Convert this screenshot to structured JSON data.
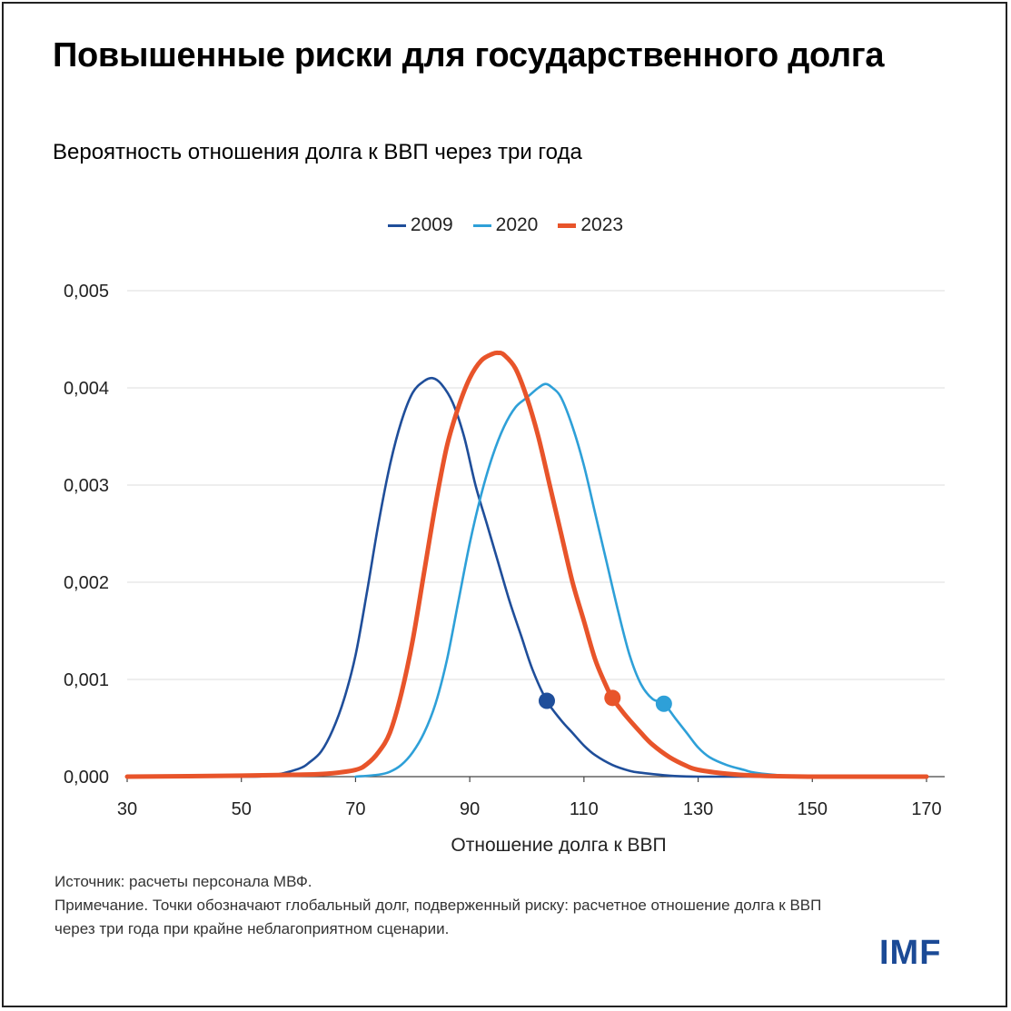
{
  "title": "Повышенные риски для государственного долга",
  "subtitle": "Вероятность отношения долга к ВВП через три года",
  "legend": [
    {
      "label": "2009",
      "color": "#1f4e9a"
    },
    {
      "label": "2020",
      "color": "#2ea0d8"
    },
    {
      "label": "2023",
      "color": "#e8542a"
    }
  ],
  "chart_data": {
    "type": "line",
    "xlabel": "Отношение долга к ВВП",
    "ylabel": "",
    "xlim": [
      30,
      170
    ],
    "ylim": [
      0,
      0.005
    ],
    "x_ticks": [
      30,
      50,
      70,
      90,
      110,
      130,
      150,
      170
    ],
    "x_tick_labels": [
      "30",
      "50",
      "70",
      "90",
      "110",
      "130",
      "150",
      "170"
    ],
    "y_ticks": [
      0,
      0.001,
      0.002,
      0.003,
      0.004,
      0.005
    ],
    "y_tick_labels": [
      "0,000",
      "0,001",
      "0,002",
      "0,003",
      "0,004",
      "0,005"
    ],
    "grid": true,
    "series": [
      {
        "name": "2009",
        "color": "#1f4e9a",
        "emphasis": false,
        "x": [
          30,
          50,
          55,
          60,
          62,
          64,
          66,
          68,
          70,
          72,
          74,
          76,
          78,
          80,
          82,
          83.5,
          85,
          87,
          89,
          91,
          93,
          95,
          97,
          99,
          101,
          103.5,
          106,
          108,
          110,
          112,
          115,
          118,
          120,
          125,
          130,
          140,
          150,
          170
        ],
        "y": [
          0,
          0,
          1e-05,
          8e-05,
          0.00015,
          0.00026,
          0.00048,
          0.0008,
          0.00125,
          0.0019,
          0.0026,
          0.0032,
          0.00365,
          0.00395,
          0.00407,
          0.0041,
          0.00404,
          0.00385,
          0.0035,
          0.003,
          0.0026,
          0.0022,
          0.0018,
          0.00145,
          0.0011,
          0.00078,
          0.00058,
          0.00045,
          0.00032,
          0.00022,
          0.00012,
          6e-05,
          4e-05,
          1e-05,
          0,
          0,
          0,
          0
        ]
      },
      {
        "name": "2020",
        "color": "#2ea0d8",
        "emphasis": false,
        "x": [
          70,
          74,
          76,
          78,
          80,
          82,
          84,
          86,
          88,
          90,
          92,
          94,
          96,
          98,
          100,
          102,
          103.3,
          104.5,
          106,
          108,
          110,
          112,
          114,
          116,
          118,
          120,
          122,
          124,
          126,
          128,
          130,
          132,
          135,
          138,
          140,
          145,
          150,
          160,
          170
        ],
        "y": [
          0,
          2e-05,
          5e-05,
          0.00012,
          0.00025,
          0.00045,
          0.00075,
          0.0012,
          0.0018,
          0.0024,
          0.0029,
          0.0033,
          0.0036,
          0.0038,
          0.0039,
          0.004,
          0.00404,
          0.004,
          0.0039,
          0.0036,
          0.0032,
          0.0027,
          0.0022,
          0.0017,
          0.00125,
          0.00095,
          0.0008,
          0.00075,
          0.0006,
          0.00045,
          0.0003,
          0.0002,
          0.00012,
          7e-05,
          4e-05,
          1e-05,
          0,
          0,
          0
        ]
      },
      {
        "name": "2023",
        "color": "#e8542a",
        "emphasis": true,
        "x": [
          30,
          50,
          60,
          65,
          70,
          72,
          74,
          76,
          78,
          80,
          82,
          84,
          86,
          88,
          90,
          92,
          94,
          95,
          96,
          98,
          100,
          102,
          104,
          106,
          108,
          110,
          112,
          114,
          115,
          117,
          120,
          122,
          125,
          128,
          130,
          135,
          140,
          150,
          160,
          170
        ],
        "y": [
          0,
          1e-05,
          2e-05,
          3e-05,
          7e-05,
          0.00013,
          0.00025,
          0.00045,
          0.00085,
          0.0014,
          0.0021,
          0.0028,
          0.0034,
          0.0038,
          0.0041,
          0.00428,
          0.00435,
          0.00436,
          0.00434,
          0.0042,
          0.0039,
          0.0035,
          0.003,
          0.0025,
          0.002,
          0.0016,
          0.0012,
          0.00092,
          0.00081,
          0.00065,
          0.00045,
          0.00033,
          0.0002,
          0.00011,
          7e-05,
          3e-05,
          1e-05,
          0,
          0,
          0
        ]
      }
    ],
    "markers": [
      {
        "series": "2009",
        "x": 103.5,
        "y": 0.00078
      },
      {
        "series": "2023",
        "x": 115,
        "y": 0.00081
      },
      {
        "series": "2020",
        "x": 124,
        "y": 0.00075
      }
    ]
  },
  "notes": {
    "source": "Источник: расчеты персонала МВФ.",
    "note": "Примечание. Точки обозначают глобальный долг, подверженный риску: расчетное отношение долга к ВВП через три года при крайне неблагоприятном сценарии."
  },
  "logo": "IMF"
}
